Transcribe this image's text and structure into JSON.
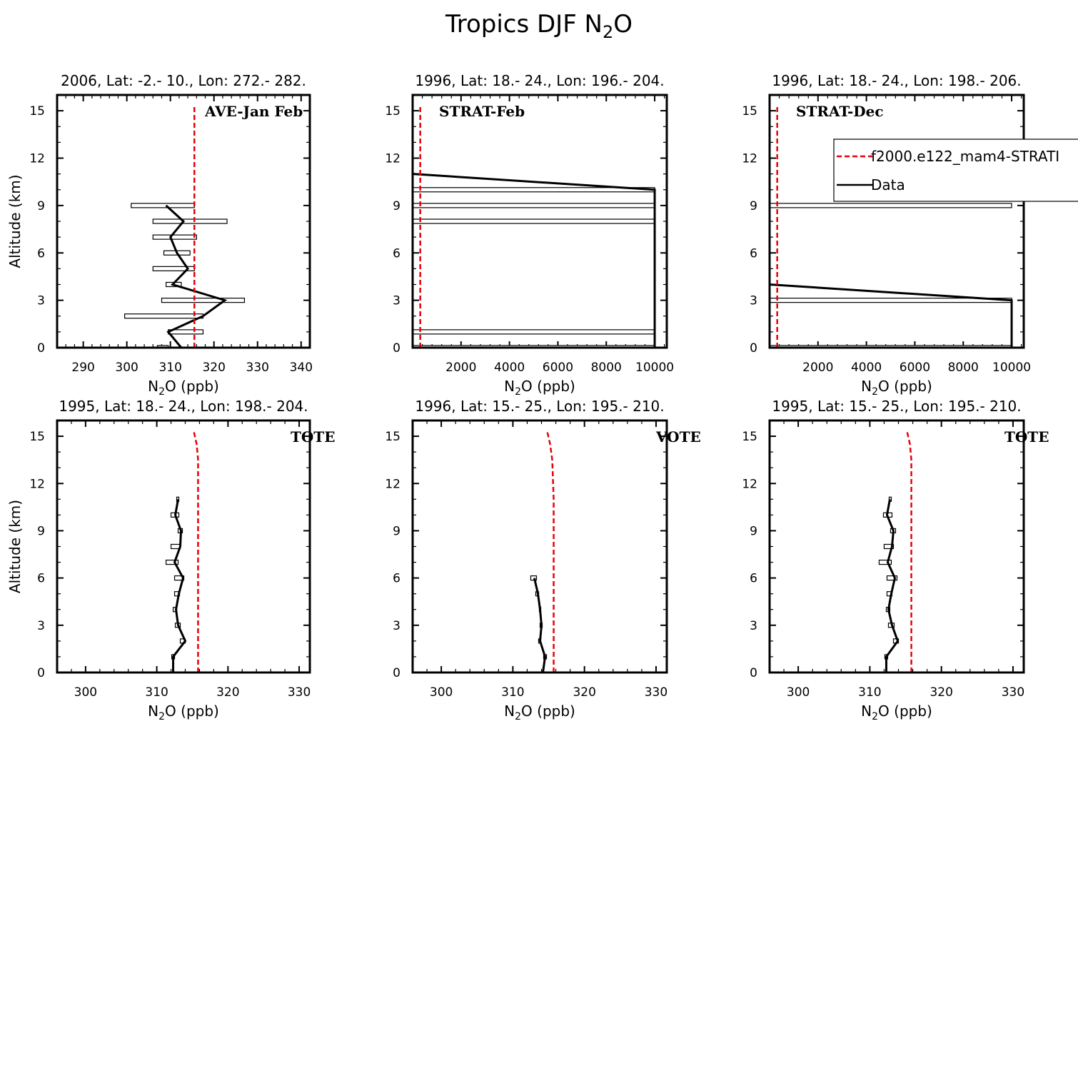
{
  "figure": {
    "title_main": "Tropics DJF N",
    "title_sub": "2",
    "title_end": "O"
  },
  "legend": {
    "model_label": "f2000.e122_mam4-STRATI",
    "data_label": "Data"
  },
  "colors": {
    "model": "#e8000b",
    "data": "#000000"
  },
  "chart_data": [
    {
      "type": "line",
      "title": "2006, Lat: -2.- 10., Lon: 272.- 282.",
      "campaign": "AVE-Jan Feb",
      "xlabel": "N2O (ppb)",
      "ylabel": "Altitude (km)",
      "xlim": [
        284,
        342
      ],
      "ylim": [
        0,
        16
      ],
      "xticks": [
        290,
        300,
        310,
        320,
        330,
        340
      ],
      "yticks": [
        0,
        3,
        6,
        9,
        12,
        15
      ],
      "model": {
        "x": [
          315.5,
          315.5,
          315.5,
          315.5
        ],
        "y": [
          0,
          5,
          10,
          15.3
        ]
      },
      "data": {
        "y": [
          0,
          1,
          2,
          3,
          4,
          5,
          6,
          7,
          8,
          9
        ],
        "x": [
          312.5,
          309.5,
          317.5,
          322.5,
          310.5,
          314,
          311.5,
          310,
          313,
          309
        ],
        "box_min": [
          307,
          309.5,
          299.5,
          308,
          309,
          306,
          308.5,
          306,
          306,
          301
        ],
        "box_max": [
          309.5,
          317.5,
          317.5,
          327,
          312.5,
          315.5,
          314.5,
          316,
          323,
          315.5
        ]
      }
    },
    {
      "type": "line",
      "title": "1996, Lat: 18.- 24., Lon: 196.- 204.",
      "campaign": "STRAT-Feb",
      "xlabel": "N2O (ppb)",
      "ylabel": "",
      "xlim": [
        0,
        10500
      ],
      "ylim": [
        0,
        16
      ],
      "xticks": [
        2000,
        4000,
        6000,
        8000,
        10000
      ],
      "yticks": [
        0,
        3,
        6,
        9,
        12,
        15
      ],
      "model": {
        "x": [
          315,
          315,
          315
        ],
        "y": [
          0,
          8,
          15.3
        ]
      },
      "data": {
        "y": [
          0,
          1,
          8,
          9,
          10,
          11
        ],
        "x": [
          10000,
          10000,
          10000,
          10000,
          10000,
          0
        ],
        "box_min": [
          0,
          0,
          0,
          0,
          0,
          0
        ],
        "box_max": [
          10000,
          10000,
          10000,
          10000,
          10000,
          0
        ]
      }
    },
    {
      "type": "line",
      "title": "1996, Lat: 18.- 24., Lon: 198.- 206.",
      "campaign": "STRAT-Dec",
      "xlabel": "N2O (ppb)",
      "ylabel": "",
      "xlim": [
        0,
        10500
      ],
      "ylim": [
        0,
        16
      ],
      "xticks": [
        2000,
        4000,
        6000,
        8000,
        10000
      ],
      "yticks": [
        0,
        3,
        6,
        9,
        12,
        15
      ],
      "model": {
        "x": [
          315,
          315,
          315
        ],
        "y": [
          0,
          8,
          15.3
        ]
      },
      "data": {
        "y": [
          0,
          3,
          4
        ],
        "x": [
          10000,
          10000,
          0
        ],
        "box_min": [
          0,
          0,
          0
        ],
        "box_max": [
          10000,
          10000,
          0
        ]
      },
      "extra_box": {
        "y": 9,
        "x_min": 0,
        "x_max": 10000
      }
    },
    {
      "type": "line",
      "title": "1995, Lat: 18.- 24., Lon: 198.- 204.",
      "campaign": "TOTE",
      "xlabel": "N2O (ppb)",
      "ylabel": "Altitude (km)",
      "xlim": [
        296,
        331.5
      ],
      "ylim": [
        0,
        16
      ],
      "xticks": [
        300,
        310,
        320,
        330
      ],
      "yticks": [
        0,
        3,
        6,
        9,
        12,
        15
      ],
      "model": {
        "x": [
          315.8,
          315.8,
          315.8,
          315.6,
          315.2
        ],
        "y": [
          0,
          12,
          13.5,
          14.5,
          15.3
        ]
      },
      "data": {
        "y": [
          0,
          1,
          2,
          3,
          4,
          5,
          6,
          7,
          8,
          9,
          10,
          11
        ],
        "x": [
          312.3,
          312.3,
          314,
          313,
          312.7,
          313.1,
          313.7,
          312.5,
          313.3,
          313.4,
          312.6,
          313
        ],
        "box_min": [
          312.3,
          312.1,
          313.3,
          312.6,
          312.3,
          312.5,
          312.5,
          311.3,
          312,
          313,
          312,
          312.8
        ],
        "box_max": [
          312.3,
          312.5,
          314,
          313.3,
          312.8,
          313.2,
          313.8,
          313,
          313.3,
          313.6,
          313.1,
          313.1
        ]
      }
    },
    {
      "type": "line",
      "title": "1996, Lat: 15.- 25., Lon: 195.- 210.",
      "campaign": "VOTE",
      "xlabel": "N2O (ppb)",
      "ylabel": "",
      "xlim": [
        296,
        331.5
      ],
      "ylim": [
        0,
        16
      ],
      "xticks": [
        300,
        310,
        320,
        330
      ],
      "yticks": [
        0,
        3,
        6,
        9,
        12,
        15
      ],
      "model": {
        "x": [
          315.7,
          315.7,
          315.5,
          315.2,
          314.8
        ],
        "y": [
          0,
          11,
          13.5,
          14.5,
          15.3
        ]
      },
      "data": {
        "y": [
          0,
          1,
          2,
          3,
          4,
          5,
          6
        ],
        "x": [
          314.2,
          314.5,
          313.8,
          314,
          313.8,
          313.5,
          313
        ],
        "box_min": [
          314.2,
          314.3,
          313.6,
          313.8,
          313.7,
          313.2,
          312.5
        ],
        "box_max": [
          314.2,
          314.7,
          313.9,
          314.1,
          313.9,
          313.6,
          313.3
        ]
      }
    },
    {
      "type": "line",
      "title": "1995, Lat: 15.- 25., Lon: 195.- 210.",
      "campaign": "TOTE",
      "xlabel": "N2O (ppb)",
      "ylabel": "",
      "xlim": [
        296,
        331.5
      ],
      "ylim": [
        0,
        16
      ],
      "xticks": [
        300,
        310,
        320,
        330
      ],
      "yticks": [
        0,
        3,
        6,
        9,
        12,
        15
      ],
      "model": {
        "x": [
          315.8,
          315.8,
          315.8,
          315.6,
          315.2
        ],
        "y": [
          0,
          12,
          13.5,
          14.5,
          15.3
        ]
      },
      "data": {
        "y": [
          0,
          1,
          2,
          3,
          4,
          5,
          6,
          7,
          8,
          9,
          10,
          11
        ],
        "x": [
          312.3,
          312.3,
          313.9,
          313.1,
          312.6,
          313,
          313.5,
          312.5,
          313.1,
          313.3,
          312.4,
          312.8
        ],
        "box_min": [
          312.3,
          312.1,
          313.3,
          312.6,
          312.3,
          312.4,
          312.4,
          311.3,
          312,
          312.9,
          311.9,
          312.7
        ],
        "box_max": [
          312.3,
          312.5,
          314,
          313.4,
          312.8,
          313.1,
          313.8,
          313,
          313.3,
          313.6,
          313.1,
          313
        ]
      }
    }
  ]
}
